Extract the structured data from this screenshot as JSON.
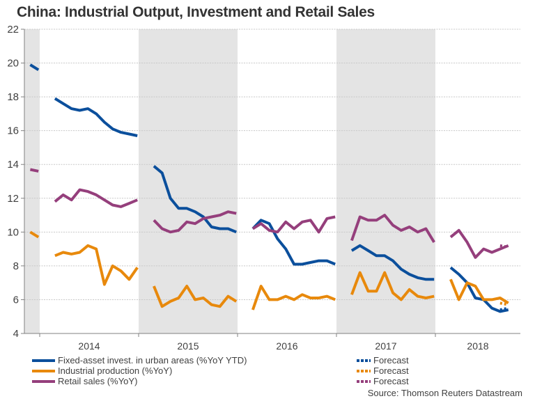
{
  "chart_data": {
    "type": "line",
    "title": "China: Industrial Output, Investment and Retail Sales",
    "xlabel": "",
    "ylabel": "",
    "ylim": [
      4,
      22
    ],
    "yticks": [
      4,
      6,
      8,
      10,
      12,
      14,
      16,
      18,
      20,
      22
    ],
    "x_tick_labels": [
      "2014",
      "2015",
      "2016",
      "2017",
      "2018"
    ],
    "x_range": {
      "start": "2013-11",
      "end": "2018-10"
    },
    "shaded_years": [
      "2013",
      "2015",
      "2017"
    ],
    "grid": true,
    "legend_position": "bottom",
    "colors": {
      "fixed_asset": "#0b4f9c",
      "industrial": "#e8890c",
      "retail": "#953f7c",
      "shade": "#e4e4e4",
      "grid": "#c8c8c8"
    },
    "series": [
      {
        "key": "fixed_asset",
        "name": "Fixed-asset invest. in urban areas (%YoY YTD)",
        "segments": [
          {
            "start": "2013-11",
            "values": [
              19.9,
              19.6
            ]
          },
          {
            "start": "2014-02",
            "values": [
              17.9,
              17.6,
              17.3,
              17.2,
              17.3,
              17.0,
              16.5,
              16.1,
              15.9,
              15.8,
              15.7
            ]
          },
          {
            "start": "2015-02",
            "values": [
              13.9,
              13.5,
              12.0,
              11.4,
              11.4,
              11.2,
              10.9,
              10.3,
              10.2,
              10.2,
              10.0
            ]
          },
          {
            "start": "2016-02",
            "values": [
              10.2,
              10.7,
              10.5,
              9.6,
              9.0,
              8.1,
              8.1,
              8.2,
              8.3,
              8.3,
              8.1
            ]
          },
          {
            "start": "2017-02",
            "values": [
              8.9,
              9.2,
              8.9,
              8.6,
              8.6,
              8.3,
              7.8,
              7.5,
              7.3,
              7.2,
              7.2
            ]
          },
          {
            "start": "2018-02",
            "values": [
              7.9,
              7.5,
              7.0,
              6.1,
              6.0,
              5.5,
              5.3,
              5.4
            ]
          }
        ],
        "forecast": {
          "start": "2018-08",
          "values": [
            5.4,
            5.5
          ]
        }
      },
      {
        "key": "industrial",
        "name": "Industrial production (%YoY)",
        "segments": [
          {
            "start": "2013-11",
            "values": [
              10.0,
              9.7
            ]
          },
          {
            "start": "2014-02",
            "values": [
              8.6,
              8.8,
              8.7,
              8.8,
              9.2,
              9.0,
              6.9,
              8.0,
              7.7,
              7.2,
              7.9
            ]
          },
          {
            "start": "2015-02",
            "values": [
              6.8,
              5.6,
              5.9,
              6.1,
              6.8,
              6.0,
              6.1,
              5.7,
              5.6,
              6.2,
              5.9
            ]
          },
          {
            "start": "2016-02",
            "values": [
              5.4,
              6.8,
              6.0,
              6.0,
              6.2,
              6.0,
              6.3,
              6.1,
              6.1,
              6.2,
              6.0
            ]
          },
          {
            "start": "2017-02",
            "values": [
              6.3,
              7.6,
              6.5,
              6.5,
              7.6,
              6.4,
              6.0,
              6.6,
              6.2,
              6.1,
              6.2
            ]
          },
          {
            "start": "2018-02",
            "values": [
              7.2,
              6.0,
              7.0,
              6.8,
              6.0,
              6.0,
              6.1,
              5.8
            ]
          }
        ],
        "forecast": {
          "start": "2018-08",
          "values": [
            5.8,
            5.7
          ]
        }
      },
      {
        "key": "retail",
        "name": "Retail sales (%YoY)",
        "segments": [
          {
            "start": "2013-11",
            "values": [
              13.7,
              13.6
            ]
          },
          {
            "start": "2014-02",
            "values": [
              11.8,
              12.2,
              11.9,
              12.5,
              12.4,
              12.2,
              11.9,
              11.6,
              11.5,
              11.7,
              11.9
            ]
          },
          {
            "start": "2015-02",
            "values": [
              10.7,
              10.2,
              10.0,
              10.1,
              10.6,
              10.5,
              10.8,
              10.9,
              11.0,
              11.2,
              11.1
            ]
          },
          {
            "start": "2016-02",
            "values": [
              10.2,
              10.5,
              10.1,
              10.0,
              10.6,
              10.2,
              10.6,
              10.7,
              10.0,
              10.8,
              10.9
            ]
          },
          {
            "start": "2017-02",
            "values": [
              9.5,
              10.9,
              10.7,
              10.7,
              11.0,
              10.4,
              10.1,
              10.3,
              10.0,
              10.2,
              9.4
            ]
          },
          {
            "start": "2018-02",
            "values": [
              9.7,
              10.1,
              9.4,
              8.5,
              9.0,
              8.8,
              9.0,
              9.2
            ]
          }
        ],
        "forecast": {
          "start": "2018-08",
          "values": [
            9.2,
            9.1
          ]
        }
      }
    ],
    "legend": [
      {
        "key": "fixed_asset",
        "label": "Fixed-asset invest. in urban areas (%YoY YTD)",
        "forecast_label": "Forecast"
      },
      {
        "key": "industrial",
        "label": "Industrial production (%YoY)",
        "forecast_label": "Forecast"
      },
      {
        "key": "retail",
        "label": "Retail sales (%YoY)",
        "forecast_label": "Forecast"
      }
    ],
    "source": "Source: Thomson Reuters Datastream"
  }
}
